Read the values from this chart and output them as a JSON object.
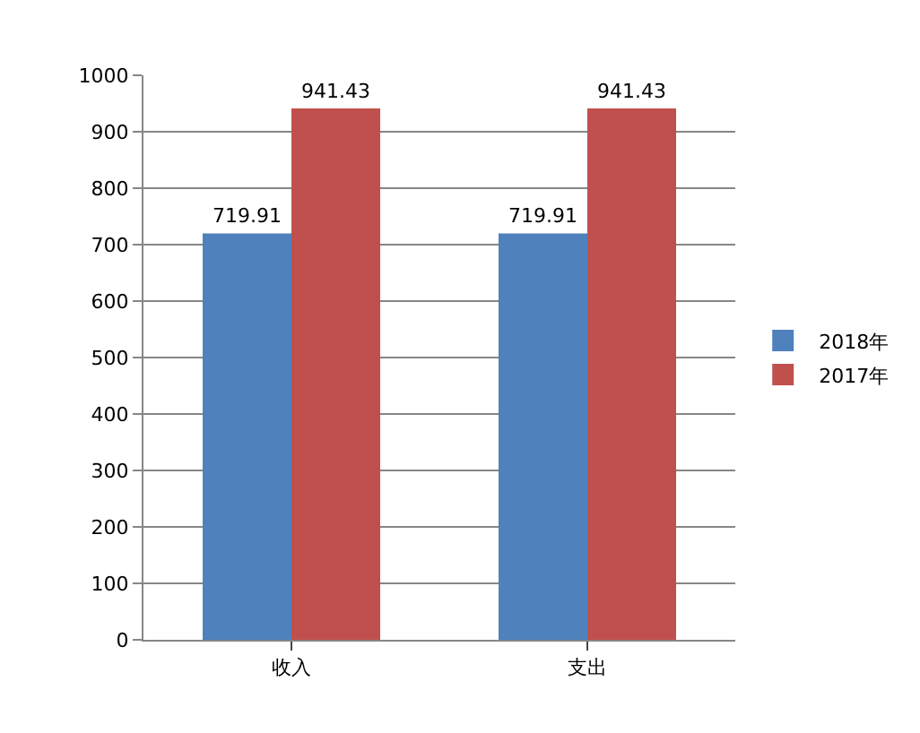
{
  "chart_data": {
    "type": "bar",
    "categories": [
      "收入",
      "支出"
    ],
    "series": [
      {
        "name": "2018年",
        "color": "#4f81bd",
        "values": [
          719.91,
          719.91
        ]
      },
      {
        "name": "2017年",
        "color": "#c0504d",
        "values": [
          941.43,
          941.43
        ]
      }
    ],
    "ylim": [
      0,
      1000
    ],
    "yticks": [
      0,
      100,
      200,
      300,
      400,
      500,
      600,
      700,
      800,
      900,
      1000
    ],
    "grid": "y",
    "legend": "right",
    "data_labels": true
  }
}
